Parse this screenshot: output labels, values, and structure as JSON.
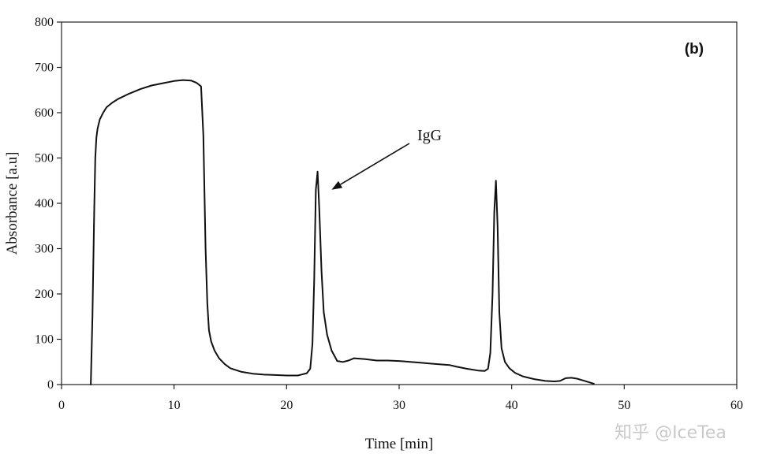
{
  "chart_data": {
    "type": "line",
    "panel_label": "(b)",
    "xlabel": "Time [min]",
    "ylabel": "Absorbance [a.u]",
    "xlim": [
      0,
      60
    ],
    "ylim": [
      0,
      800
    ],
    "xticks": [
      0,
      10,
      20,
      30,
      40,
      50,
      60
    ],
    "yticks": [
      0,
      100,
      200,
      300,
      400,
      500,
      600,
      700,
      800
    ],
    "grid": false,
    "annotations": [
      {
        "text": "IgG",
        "points_to": {
          "x": 24.0,
          "y": 430
        }
      }
    ],
    "series": [
      {
        "x": [
          2.6,
          2.75,
          2.9,
          3.0,
          3.1,
          3.2,
          3.4,
          3.7,
          4.0,
          4.5,
          5.0,
          6.0,
          7.0,
          8.0,
          9.0,
          10.0,
          10.8,
          11.5,
          12.0,
          12.4,
          12.6,
          12.8,
          12.95,
          13.1,
          13.3,
          13.6,
          14.0,
          14.5,
          15.0,
          16.0,
          17.0,
          18.0,
          19.0,
          20.0,
          21.0,
          21.8,
          22.1,
          22.3,
          22.45,
          22.6,
          22.75,
          22.9,
          23.1,
          23.3,
          23.6,
          24.0,
          24.5,
          25.0,
          25.5,
          26.0,
          27.0,
          28.0,
          29.0,
          30.0,
          31.0,
          32.0,
          33.0,
          34.0,
          34.5,
          35.0,
          36.0,
          37.0,
          37.6,
          37.9,
          38.1,
          38.3,
          38.45,
          38.6,
          38.75,
          38.9,
          39.1,
          39.4,
          39.8,
          40.3,
          41.0,
          42.0,
          43.0,
          43.8,
          44.3,
          44.8,
          45.3,
          45.8,
          46.5,
          47.3
        ],
        "y": [
          0,
          150,
          380,
          500,
          545,
          565,
          585,
          600,
          612,
          622,
          630,
          642,
          652,
          660,
          665,
          670,
          672,
          671,
          666,
          658,
          550,
          300,
          180,
          120,
          95,
          75,
          58,
          45,
          36,
          28,
          24,
          22,
          21,
          20,
          20,
          25,
          35,
          90,
          230,
          430,
          470,
          390,
          250,
          160,
          110,
          75,
          52,
          50,
          53,
          58,
          56,
          53,
          53,
          52,
          50,
          48,
          46,
          44,
          43,
          40,
          35,
          31,
          30,
          35,
          70,
          200,
          380,
          450,
          350,
          160,
          80,
          50,
          36,
          26,
          18,
          12,
          8,
          7,
          8,
          14,
          15,
          13,
          8,
          2
        ]
      }
    ]
  },
  "watermark": "知乎 @IceTea"
}
